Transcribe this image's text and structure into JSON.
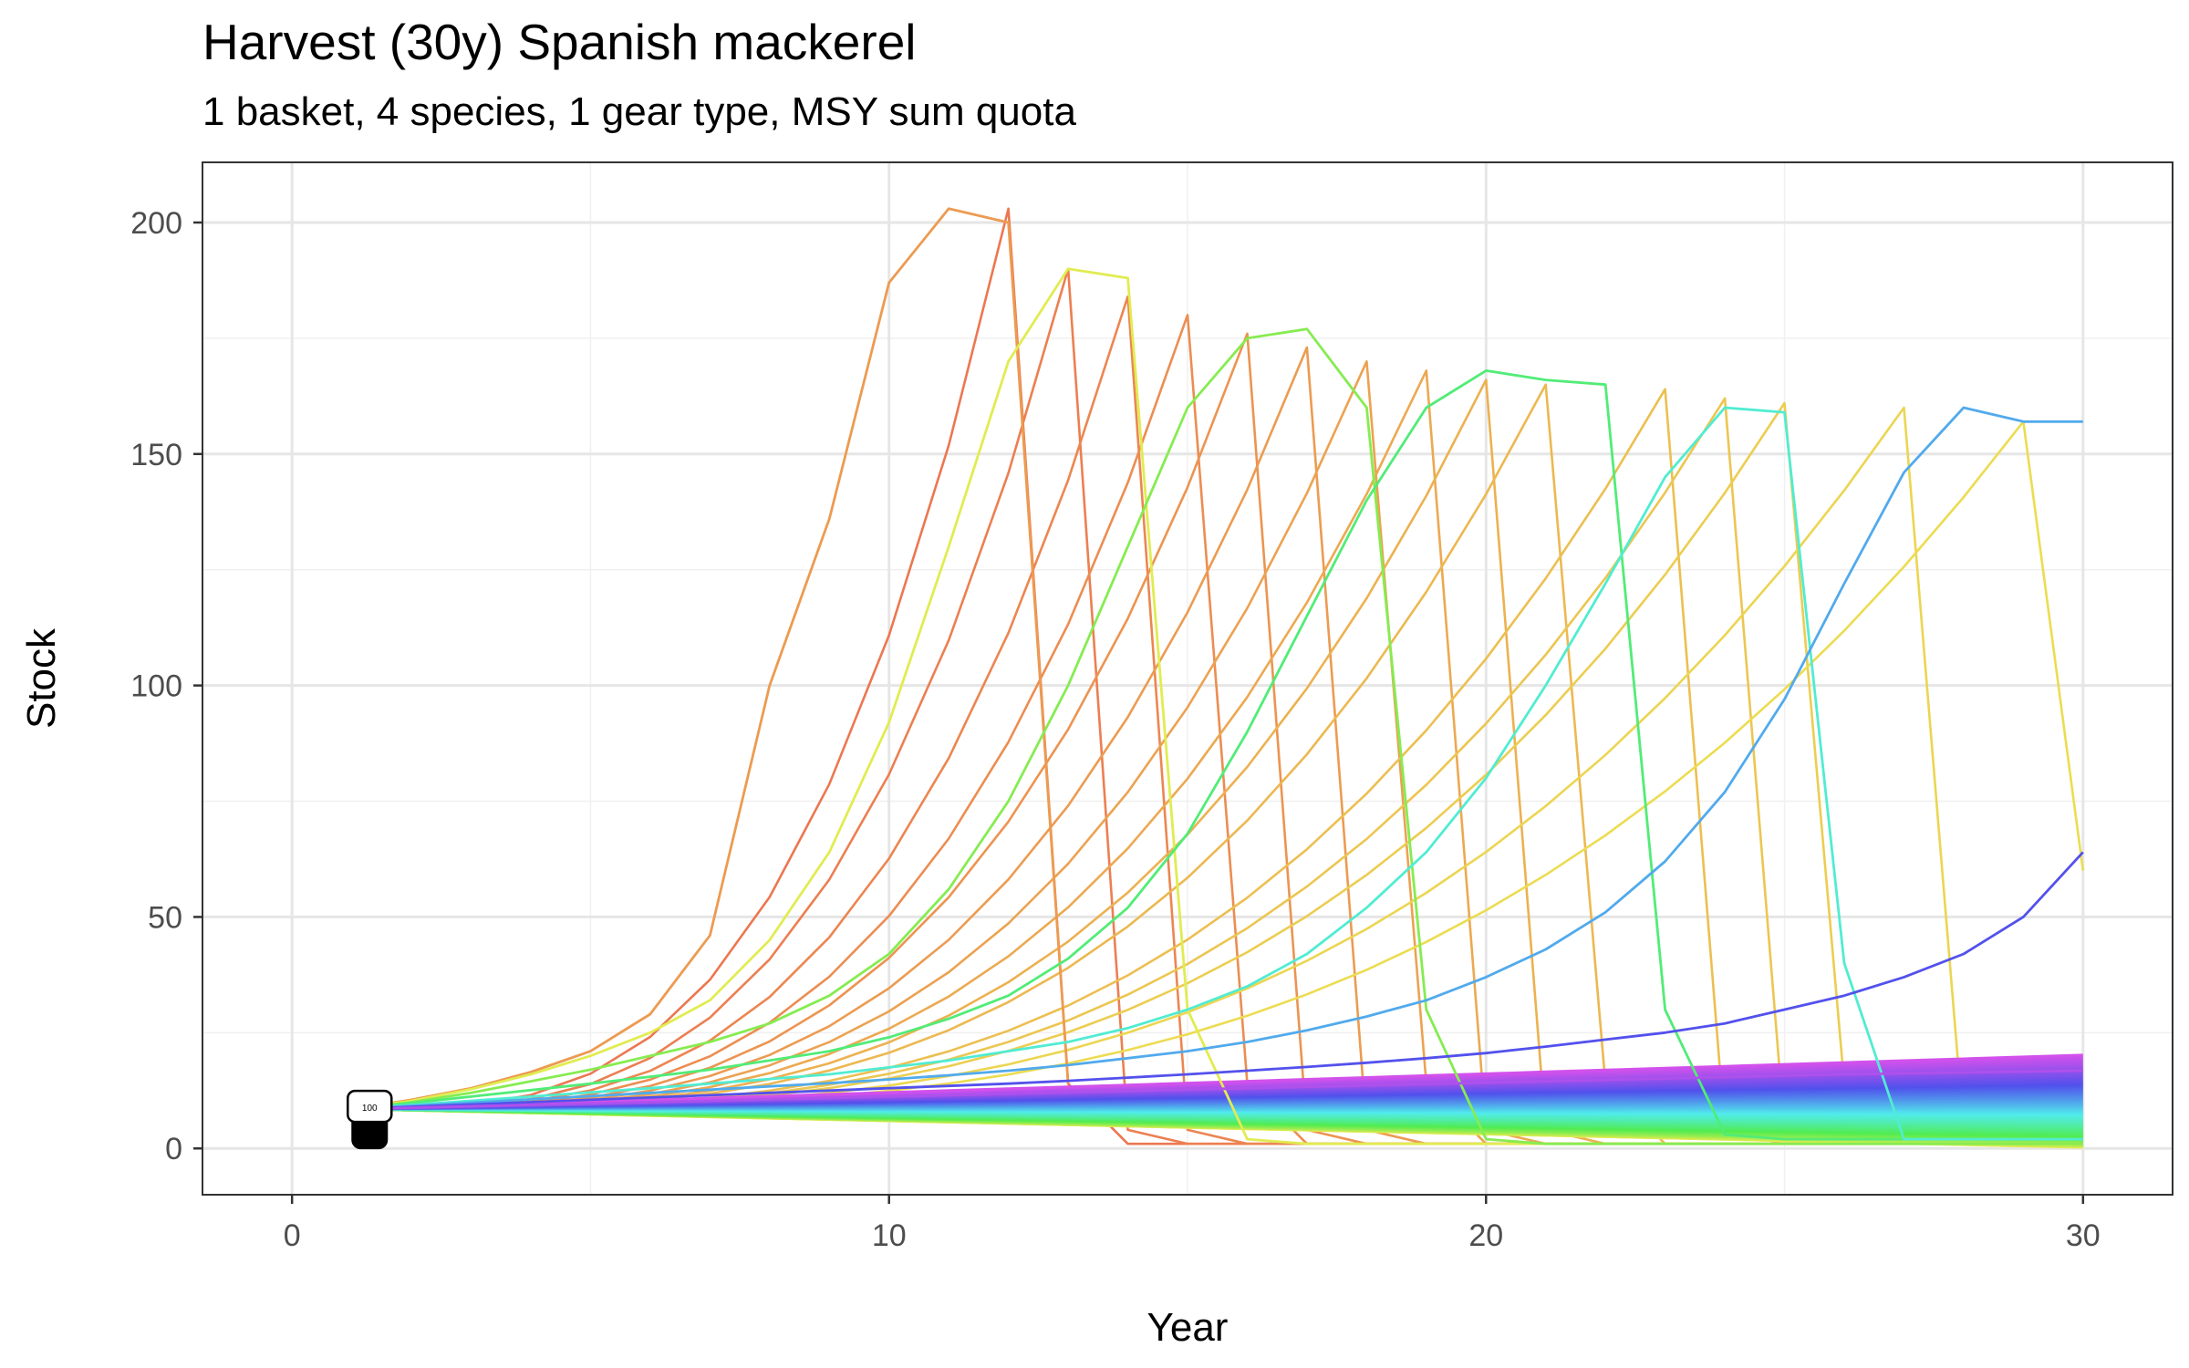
{
  "chart_data": {
    "type": "line",
    "title": "Harvest (30y) Spanish mackerel",
    "subtitle": "1 basket, 4 species, 1 gear type, MSY sum quota",
    "xlabel": "Year",
    "ylabel": "Stock",
    "xlim": [
      -1.5,
      31.5
    ],
    "ylim": [
      -10,
      213
    ],
    "x_ticks": [
      0,
      10,
      20,
      30
    ],
    "y_ticks": [
      0,
      50,
      100,
      150,
      200
    ],
    "x_tick_labels": [
      "0",
      "10",
      "20",
      "30"
    ],
    "y_tick_labels": [
      "0",
      "50",
      "100",
      "150",
      "200"
    ],
    "grid": true,
    "legend": "none",
    "marker_label": "100",
    "marker_at": [
      1.3,
      8.5
    ],
    "initial_stock": 8.5,
    "hue_start": 15,
    "hue_end": 290,
    "series_count": 100,
    "crash_series": [
      {
        "crash_year": 13,
        "peak": 203
      },
      {
        "crash_year": 14,
        "peak": 190
      },
      {
        "crash_year": 15,
        "peak": 184
      },
      {
        "crash_year": 16,
        "peak": 180
      },
      {
        "crash_year": 17,
        "peak": 176
      },
      {
        "crash_year": 18,
        "peak": 173
      },
      {
        "crash_year": 19,
        "peak": 170
      },
      {
        "crash_year": 20,
        "peak": 168
      },
      {
        "crash_year": 21,
        "peak": 166
      },
      {
        "crash_year": 22,
        "peak": 165
      },
      {
        "crash_year": 24,
        "peak": 164
      },
      {
        "crash_year": 25,
        "peak": 162
      },
      {
        "crash_year": 26,
        "peak": 161
      },
      {
        "crash_year": 28,
        "peak": 160
      },
      {
        "crash_year": 30,
        "peak": 157
      }
    ],
    "lines": [
      {
        "x": [
          1,
          2,
          3,
          4,
          5,
          6,
          7,
          8,
          9,
          10,
          11,
          12,
          13
        ],
        "y": [
          8.5,
          10.5,
          13,
          16.5,
          21,
          29,
          46,
          100,
          136,
          187,
          203,
          200,
          14
        ]
      },
      {
        "x": [
          1,
          2,
          3,
          4,
          5,
          6,
          7,
          8,
          9,
          10,
          11,
          12,
          13,
          14,
          15,
          16,
          17,
          18,
          19,
          20,
          21,
          22,
          23,
          24,
          25,
          26,
          27,
          28,
          29,
          30
        ],
        "y": [
          8.5,
          10.3,
          12.8,
          16,
          20,
          25,
          32,
          45,
          64,
          92,
          130,
          170,
          190,
          188,
          30,
          2,
          1,
          1,
          1,
          1,
          1,
          1,
          1,
          1,
          1,
          1,
          1,
          1,
          1,
          1
        ]
      },
      {
        "x": [
          1,
          2,
          3,
          4,
          5,
          6,
          7,
          8,
          9,
          10,
          11,
          12,
          13,
          14,
          15,
          16,
          17,
          18,
          19,
          20,
          21,
          22,
          23,
          24,
          25,
          26,
          27,
          28,
          29,
          30
        ],
        "y": [
          8.5,
          10,
          12,
          14.5,
          17,
          20,
          23,
          27,
          33,
          42,
          56,
          75,
          100,
          130,
          160,
          175,
          177,
          160,
          30,
          2,
          1,
          1,
          1,
          1,
          1,
          1,
          1,
          1,
          1,
          1
        ]
      },
      {
        "x": [
          1,
          2,
          3,
          4,
          5,
          6,
          7,
          8,
          9,
          10,
          11,
          12,
          13,
          14,
          15,
          16,
          17,
          18,
          19,
          20,
          21,
          22,
          23,
          24,
          25,
          26,
          27,
          28,
          29,
          30
        ],
        "y": [
          8.5,
          9.8,
          11.2,
          12.6,
          14,
          15.5,
          17,
          19,
          21,
          24,
          28,
          33,
          41,
          52,
          68,
          90,
          115,
          140,
          160,
          168,
          166,
          165,
          30,
          3,
          2,
          2,
          2,
          2,
          2,
          2
        ]
      },
      {
        "x": [
          1,
          2,
          3,
          4,
          5,
          6,
          7,
          8,
          9,
          10,
          11,
          12,
          13,
          14,
          15,
          16,
          17,
          18,
          19,
          20,
          21,
          22,
          23,
          24,
          25,
          26,
          27,
          28,
          29,
          30
        ],
        "y": [
          8.5,
          9.4,
          10.3,
          11.2,
          12.1,
          13,
          14,
          15,
          16,
          17.5,
          19,
          21,
          23,
          26,
          30,
          35,
          42,
          52,
          64,
          80,
          100,
          122,
          145,
          160,
          159,
          40,
          2,
          2,
          2,
          2
        ]
      },
      {
        "x": [
          1,
          2,
          3,
          4,
          5,
          6,
          7,
          8,
          9,
          10,
          11,
          12,
          13,
          14,
          15,
          16,
          17,
          18,
          19,
          20,
          21,
          22,
          23,
          24,
          25,
          26,
          27,
          28,
          29,
          30
        ],
        "y": [
          8.5,
          9.2,
          9.9,
          10.6,
          11.3,
          12,
          12.7,
          13.4,
          14.1,
          14.9,
          15.8,
          16.8,
          18,
          19.5,
          21,
          23,
          25.5,
          28.5,
          32,
          37,
          43,
          51,
          62,
          77,
          97,
          122,
          146,
          160,
          157,
          157
        ]
      },
      {
        "x": [
          1,
          2,
          3,
          4,
          5,
          6,
          7,
          8,
          9,
          10,
          11,
          12,
          13,
          14,
          15,
          16,
          17,
          18,
          19,
          20,
          21,
          22,
          23,
          24,
          25,
          26,
          27,
          28,
          29,
          30
        ],
        "y": [
          8.5,
          9,
          9.5,
          10,
          10.5,
          11,
          11.5,
          12,
          12.5,
          13,
          13.5,
          14,
          14.6,
          15.3,
          16,
          16.8,
          17.6,
          18.5,
          19.5,
          20.6,
          22,
          23.5,
          25,
          27,
          30,
          33,
          37,
          42,
          50,
          64
        ]
      },
      {
        "x": [
          1,
          2,
          3,
          4,
          5,
          6,
          7,
          8,
          9,
          10,
          11,
          12,
          13,
          14,
          15,
          16,
          17,
          18,
          19,
          20,
          21,
          22,
          23,
          24,
          25,
          26,
          27,
          28,
          29,
          30
        ],
        "y": [
          8.5,
          8.8,
          9.1,
          9.4,
          9.7,
          10,
          10.3,
          10.6,
          10.9,
          11.2,
          11.5,
          11.8,
          12.1,
          12.4,
          12.7,
          13,
          13.3,
          13.6,
          13.9,
          14.2,
          14.5,
          14.8,
          15.1,
          15.4,
          15.7,
          16,
          16.2,
          16.4,
          16.6,
          16.8
        ]
      }
    ]
  }
}
